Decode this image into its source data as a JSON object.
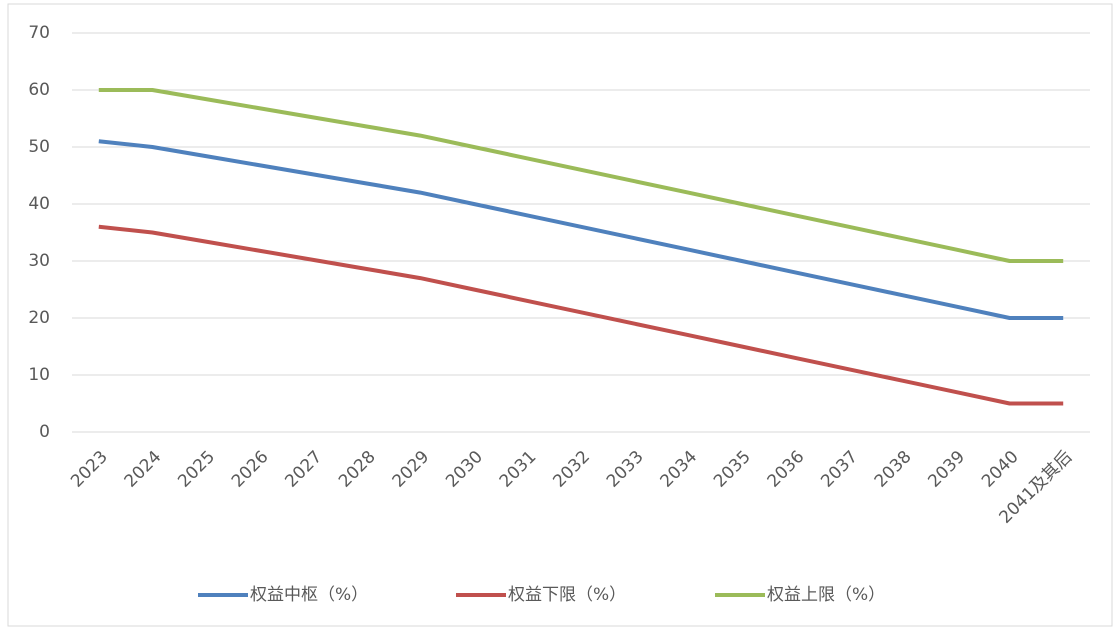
{
  "chart_data": {
    "type": "line",
    "categories": [
      "2023",
      "2024",
      "2025",
      "2026",
      "2027",
      "2028",
      "2029",
      "2030",
      "2031",
      "2032",
      "2033",
      "2034",
      "2035",
      "2036",
      "2037",
      "2038",
      "2039",
      "2040",
      "2041及其后"
    ],
    "series": [
      {
        "name": "权益中枢（%）",
        "color": "#4f81bd",
        "values": [
          51,
          50,
          48.4,
          46.8,
          45.2,
          43.6,
          42,
          40,
          38,
          36,
          34,
          32,
          30,
          28,
          26,
          24,
          22,
          20,
          20
        ]
      },
      {
        "name": "权益下限（%）",
        "color": "#c0504d",
        "values": [
          36,
          35,
          33.4,
          31.8,
          30.2,
          28.6,
          27,
          25,
          23,
          21,
          19,
          17,
          15,
          13,
          11,
          9,
          7,
          5,
          5
        ]
      },
      {
        "name": "权益上限（%）",
        "color": "#9bbb59",
        "values": [
          60,
          60,
          58.4,
          56.8,
          55.2,
          53.6,
          52,
          50,
          48,
          46,
          44,
          42,
          40,
          38,
          36,
          34,
          32,
          30,
          30
        ]
      }
    ],
    "ylim": [
      0,
      70
    ],
    "yticks": [
      0,
      10,
      20,
      30,
      40,
      50,
      60,
      70
    ],
    "grid": true,
    "legend": "bottom"
  }
}
